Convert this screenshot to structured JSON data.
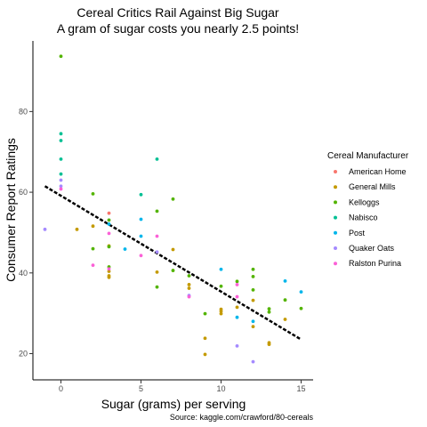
{
  "chart_data": {
    "type": "scatter",
    "title": "Cereal Critics Rail Against Big Sugar",
    "subtitle": "A gram of sugar costs you nearly 2.5 points!",
    "xlabel": "Sugar (grams) per serving",
    "ylabel": "Consumer Report Ratings",
    "caption": "Source: kaggle.com/crawford/80-cereals",
    "xlim": [
      -1.75,
      15.75
    ],
    "ylim": [
      13.5,
      97.5
    ],
    "x_ticks": [
      0,
      5,
      10,
      15
    ],
    "y_ticks": [
      20,
      40,
      60,
      80
    ],
    "grid": false,
    "legend_title": "Cereal Manufacturer",
    "legend_position": "right",
    "trend_line": {
      "style": "dashed",
      "color": "#000000",
      "x_start": -1,
      "y_start": 61.5,
      "x_end": 15,
      "y_end": 23.5
    },
    "series": [
      {
        "name": "American Home",
        "color": "#F8766D",
        "points": [
          [
            3,
            54.8
          ]
        ]
      },
      {
        "name": "General Mills",
        "color": "#C49A00",
        "points": [
          [
            1,
            50.8
          ],
          [
            2,
            51.6
          ],
          [
            3,
            46.7
          ],
          [
            3,
            39.3
          ],
          [
            3,
            40.4
          ],
          [
            3,
            38.9
          ],
          [
            6,
            40.2
          ],
          [
            7,
            45.8
          ],
          [
            8,
            36.2
          ],
          [
            8,
            37.1
          ],
          [
            9,
            19.8
          ],
          [
            9,
            23.8
          ],
          [
            10,
            30.5
          ],
          [
            10,
            31.0
          ],
          [
            10,
            29.9
          ],
          [
            11,
            31.5
          ],
          [
            12,
            26.7
          ],
          [
            13,
            22.7
          ],
          [
            13,
            22.3
          ],
          [
            14,
            28.5
          ],
          [
            12,
            33.2
          ]
        ]
      },
      {
        "name": "Kelloggs",
        "color": "#53B400",
        "points": [
          [
            0,
            93.7
          ],
          [
            2,
            59.6
          ],
          [
            2,
            46.0
          ],
          [
            3,
            53.1
          ],
          [
            3,
            41.5
          ],
          [
            3,
            46.5
          ],
          [
            6,
            55.3
          ],
          [
            6,
            36.5
          ],
          [
            7,
            58.3
          ],
          [
            7,
            40.6
          ],
          [
            8,
            39.3
          ],
          [
            9,
            29.9
          ],
          [
            10,
            36.7
          ],
          [
            11,
            37.9
          ],
          [
            12,
            40.9
          ],
          [
            12,
            39.1
          ],
          [
            12,
            35.8
          ],
          [
            13,
            31.1
          ],
          [
            13,
            30.3
          ],
          [
            14,
            33.3
          ],
          [
            15,
            31.2
          ]
        ]
      },
      {
        "name": "Nabisco",
        "color": "#00C094",
        "points": [
          [
            0,
            74.5
          ],
          [
            0,
            72.8
          ],
          [
            0,
            68.2
          ],
          [
            0,
            64.5
          ],
          [
            5,
            59.4
          ],
          [
            6,
            68.2
          ]
        ]
      },
      {
        "name": "Post",
        "color": "#00B6EB",
        "points": [
          [
            3,
            52.1
          ],
          [
            4,
            45.9
          ],
          [
            5,
            53.3
          ],
          [
            5,
            49.1
          ],
          [
            10,
            40.9
          ],
          [
            11,
            29.0
          ],
          [
            12,
            28.0
          ],
          [
            14,
            38.0
          ],
          [
            15,
            35.3
          ]
        ]
      },
      {
        "name": "Quaker Oats",
        "color": "#A58AFF",
        "points": [
          [
            -1,
            50.8
          ],
          [
            0,
            63.0
          ],
          [
            6,
            45.2
          ],
          [
            8,
            34.4
          ],
          [
            11,
            21.9
          ],
          [
            12,
            18.0
          ],
          [
            0,
            61.5
          ]
        ]
      },
      {
        "name": "Ralston Purina",
        "color": "#FB61D7",
        "points": [
          [
            2,
            41.9
          ],
          [
            3,
            41.0
          ],
          [
            3,
            49.8
          ],
          [
            5,
            44.3
          ],
          [
            6,
            49.1
          ],
          [
            8,
            34.1
          ],
          [
            11,
            37.1
          ],
          [
            11,
            34.1
          ],
          [
            0,
            60.8
          ]
        ]
      }
    ]
  }
}
